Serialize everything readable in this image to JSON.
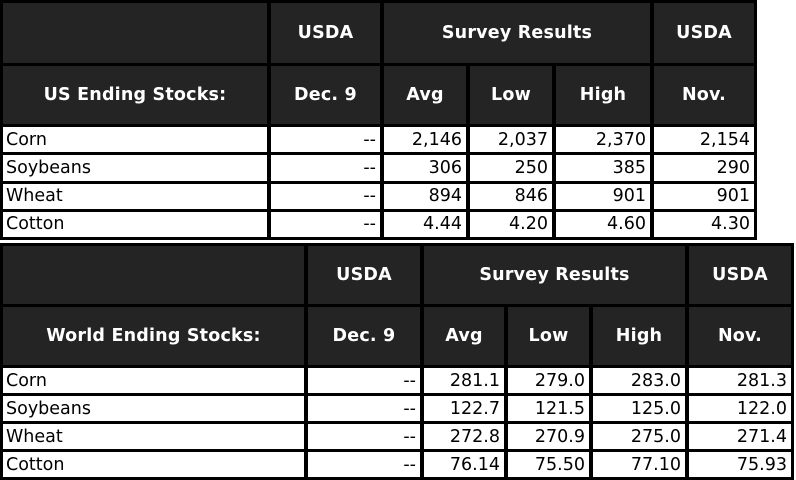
{
  "colors": {
    "header_bg": "#242424",
    "header_text": "#ffffff",
    "border": "#000000",
    "cell_bg": "#ffffff",
    "cell_text": "#000000"
  },
  "chart_data": [
    {
      "type": "table",
      "title": "US Ending Stocks:",
      "top_header": [
        "USDA",
        "Survey Results",
        "USDA"
      ],
      "columns": [
        "Dec. 9",
        "Avg",
        "Low",
        "High",
        "Nov."
      ],
      "rows": [
        [
          "Corn",
          "--",
          "2,146",
          "2,037",
          "2,370",
          "2,154"
        ],
        [
          "Soybeans",
          "--",
          "306",
          "250",
          "385",
          "290"
        ],
        [
          "Wheat",
          "--",
          "894",
          "846",
          "901",
          "901"
        ],
        [
          "Cotton",
          "--",
          "4.44",
          "4.20",
          "4.60",
          "4.30"
        ]
      ]
    },
    {
      "type": "table",
      "title": "World Ending Stocks:",
      "top_header": [
        "USDA",
        "Survey Results",
        "USDA"
      ],
      "columns": [
        "Dec. 9",
        "Avg",
        "Low",
        "High",
        "Nov."
      ],
      "rows": [
        [
          "Corn",
          "--",
          "281.1",
          "279.0",
          "283.0",
          "281.3"
        ],
        [
          "Soybeans",
          "--",
          "122.7",
          "121.5",
          "125.0",
          "122.0"
        ],
        [
          "Wheat",
          "--",
          "272.8",
          "270.9",
          "275.0",
          "271.4"
        ],
        [
          "Cotton",
          "--",
          "76.14",
          "75.50",
          "77.10",
          "75.93"
        ]
      ]
    }
  ]
}
